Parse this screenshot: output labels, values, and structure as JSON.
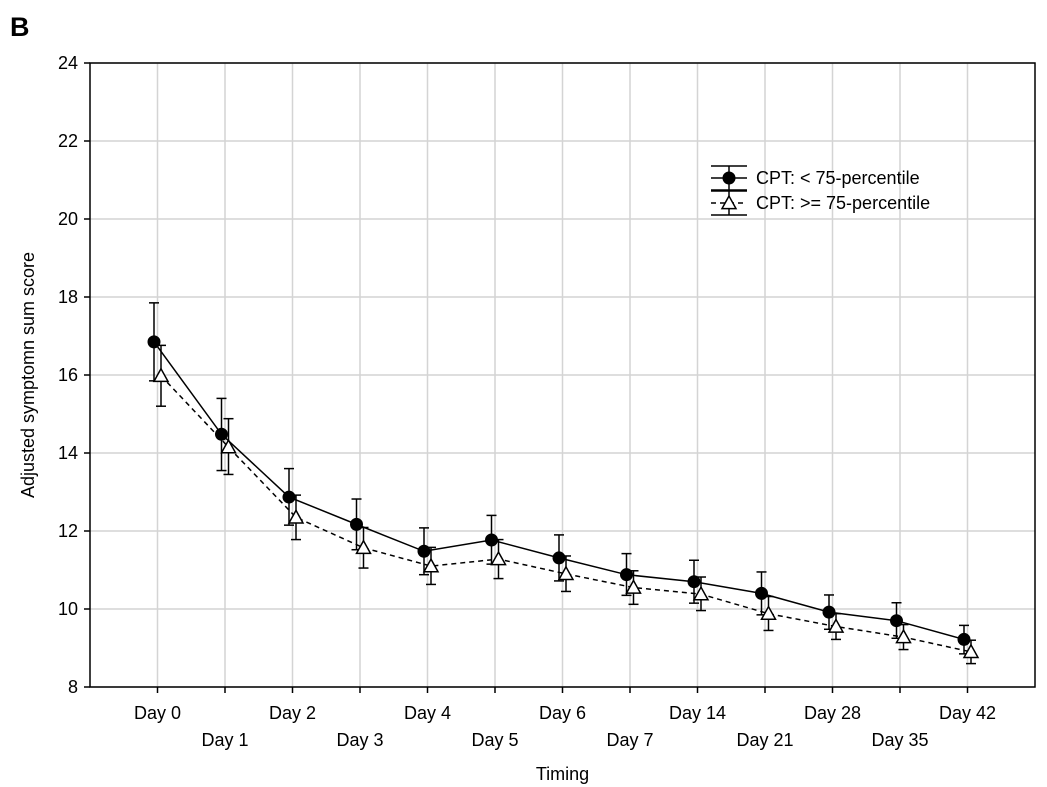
{
  "panel_label": "B",
  "chart_data": {
    "type": "line",
    "title": "",
    "xlabel": "Timing",
    "ylabel": "Adjusted symptomn sum score",
    "ylim": [
      8,
      24
    ],
    "yticks": [
      8,
      10,
      12,
      14,
      16,
      18,
      20,
      22,
      24
    ],
    "categories": [
      "Day 0",
      "Day 1",
      "Day 2",
      "Day 3",
      "Day 4",
      "Day 5",
      "Day 6",
      "Day 7",
      "Day 14",
      "Day 21",
      "Day 28",
      "Day 35",
      "Day 42"
    ],
    "grid": true,
    "legend": "top-right",
    "series": [
      {
        "name": "CPT: < 75-percentile",
        "line_style": "solid",
        "marker": "filled-circle",
        "values": [
          16.85,
          14.48,
          12.87,
          12.17,
          11.48,
          11.77,
          11.31,
          10.88,
          10.7,
          10.4,
          9.92,
          9.7,
          9.22
        ],
        "err_low": [
          15.85,
          13.55,
          12.15,
          11.52,
          10.88,
          11.15,
          10.72,
          10.35,
          10.15,
          9.85,
          9.48,
          9.25,
          8.85
        ],
        "err_high": [
          17.85,
          15.4,
          13.6,
          12.82,
          12.08,
          12.4,
          11.9,
          11.42,
          11.25,
          10.95,
          10.36,
          10.16,
          9.58
        ]
      },
      {
        "name": "CPT: >= 75-percentile",
        "line_style": "dashed",
        "marker": "open-triangle",
        "values": [
          15.98,
          14.15,
          12.35,
          11.57,
          11.1,
          11.28,
          10.9,
          10.55,
          10.38,
          9.88,
          9.55,
          9.28,
          8.9
        ],
        "err_low": [
          15.2,
          13.45,
          11.78,
          11.05,
          10.63,
          10.78,
          10.45,
          10.12,
          9.96,
          9.45,
          9.22,
          8.96,
          8.6
        ],
        "err_high": [
          16.76,
          14.88,
          12.92,
          12.09,
          11.58,
          11.78,
          11.36,
          10.98,
          10.82,
          10.32,
          9.88,
          9.6,
          9.2
        ]
      }
    ]
  }
}
